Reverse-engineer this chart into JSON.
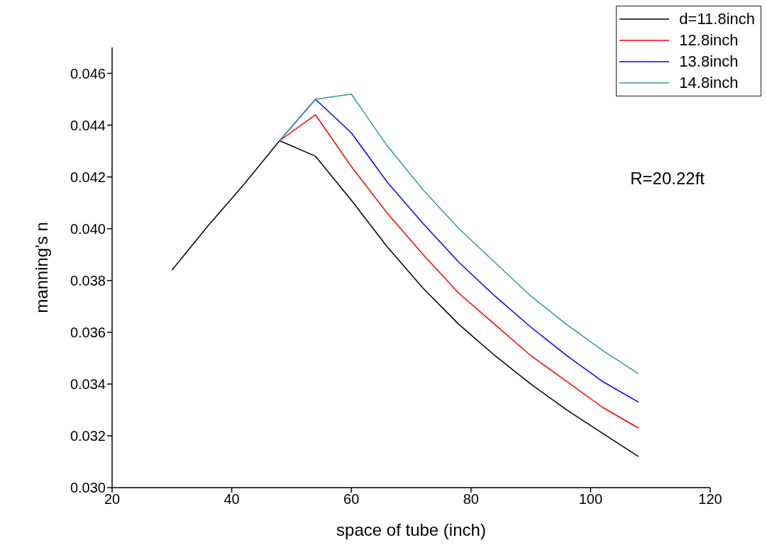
{
  "chart_data": {
    "type": "line",
    "xlabel": "space of tube (inch)",
    "ylabel": "manning's n",
    "annotations": [
      "R=20.22ft"
    ],
    "x": [
      30,
      36,
      42,
      48,
      54,
      60,
      66,
      72,
      78,
      84,
      90,
      96,
      102,
      108
    ],
    "xlim": [
      20,
      120
    ],
    "xticks": [
      20,
      40,
      60,
      80,
      100,
      120
    ],
    "ylim": [
      0.03,
      0.047
    ],
    "yticks": [
      {
        "value": 0.03,
        "label": "0.030"
      },
      {
        "value": 0.032,
        "label": "0.032"
      },
      {
        "value": 0.034,
        "label": "0.034"
      },
      {
        "value": 0.036,
        "label": "0.036"
      },
      {
        "value": 0.038,
        "label": "0.038"
      },
      {
        "value": 0.04,
        "label": "0.040"
      },
      {
        "value": 0.042,
        "label": "0.042"
      },
      {
        "value": 0.044,
        "label": "0.044"
      },
      {
        "value": 0.046,
        "label": "0.046"
      }
    ],
    "grid": false,
    "legend": "top right",
    "marker": "none",
    "line_style": "solid",
    "series": [
      {
        "name": "d=11.8inch",
        "color": "#000000",
        "values": [
          0.0384,
          0.0401,
          0.0417,
          0.0434,
          0.0428,
          0.0411,
          0.0393,
          0.0377,
          0.0363,
          0.0351,
          0.034,
          0.033,
          0.0321,
          0.0312
        ]
      },
      {
        "name": "12.8inch",
        "color": "#ff0000",
        "values": [
          null,
          null,
          null,
          0.0434,
          0.0444,
          0.0424,
          0.0406,
          0.039,
          0.0375,
          0.0363,
          0.0351,
          0.0341,
          0.0331,
          0.0323
        ]
      },
      {
        "name": "13.8inch",
        "color": "#0000ff",
        "values": [
          null,
          null,
          null,
          0.0434,
          0.045,
          0.0437,
          0.0418,
          0.0402,
          0.0387,
          0.0374,
          0.0362,
          0.0351,
          0.0341,
          0.0333
        ]
      },
      {
        "name": "14.8inch",
        "color": "#2e9b9b",
        "values": [
          null,
          null,
          null,
          0.0434,
          0.045,
          0.0452,
          0.0432,
          0.0415,
          0.04,
          0.0387,
          0.0374,
          0.0363,
          0.0353,
          0.0344
        ]
      }
    ]
  }
}
